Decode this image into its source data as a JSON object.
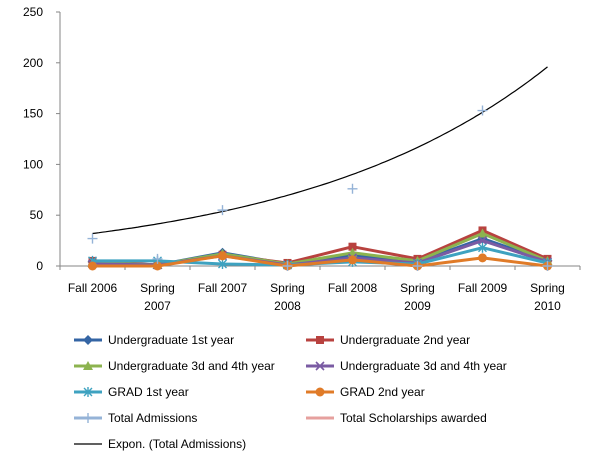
{
  "chart_data": {
    "type": "line",
    "categories": [
      [
        "Fall 2006"
      ],
      [
        "Spring",
        "2007"
      ],
      [
        "Fall 2007"
      ],
      [
        "Spring",
        "2008"
      ],
      [
        "Fall 2008"
      ],
      [
        "Spring",
        "2009"
      ],
      [
        "Fall 2009"
      ],
      [
        "Spring",
        "2010"
      ]
    ],
    "ylim": [
      0,
      250
    ],
    "yticks": [
      "0",
      "50",
      "100",
      "150",
      "200",
      "250"
    ],
    "grid": false,
    "legend_position": "bottom",
    "series": [
      {
        "name": "Undergraduate 1st year",
        "color": "#3465A4",
        "marker": "diamond",
        "values": [
          4,
          1,
          13,
          2,
          10,
          4,
          27,
          5
        ]
      },
      {
        "name": "Undergraduate 2nd year",
        "color": "#B8423F",
        "marker": "square",
        "values": [
          5,
          1,
          11,
          3,
          19,
          7,
          35,
          7
        ]
      },
      {
        "name": "Undergraduate 3d  and 4th year",
        "color": "#8CB34F",
        "marker": "triangle",
        "values": [
          3,
          1,
          12,
          2,
          13,
          5,
          32,
          5
        ]
      },
      {
        "name": "Undergraduate 3d  and 4th year",
        "color": "#7A5BA3",
        "marker": "x",
        "values": [
          2,
          1,
          10,
          1,
          8,
          3,
          25,
          4
        ]
      },
      {
        "name": "GRAD 1st year",
        "color": "#3EA2C0",
        "marker": "asterisk",
        "values": [
          5,
          5,
          2,
          1,
          4,
          2,
          18,
          3
        ]
      },
      {
        "name": "GRAD 2nd year",
        "color": "#E07B28",
        "marker": "circle",
        "values": [
          0,
          0,
          10,
          0,
          6,
          0,
          8,
          0
        ]
      },
      {
        "name": "Total Admissions",
        "color": "#95B3D7",
        "marker": "plus",
        "line": false,
        "values": [
          27,
          7,
          55,
          0,
          76,
          0,
          153,
          0
        ]
      },
      {
        "name": "Total Scholarships awarded",
        "color": "#E6A09E",
        "marker": "none",
        "values": [
          null,
          null,
          null,
          null,
          null,
          null,
          null,
          null
        ]
      }
    ],
    "trendline": {
      "name": "Expon. (Total Admissions)",
      "color": "#000000",
      "values": [
        29.2,
        37.9,
        49.1,
        63.6,
        82.4,
        106.7,
        138.2,
        179.0
      ],
      "end_value": 196
    }
  }
}
